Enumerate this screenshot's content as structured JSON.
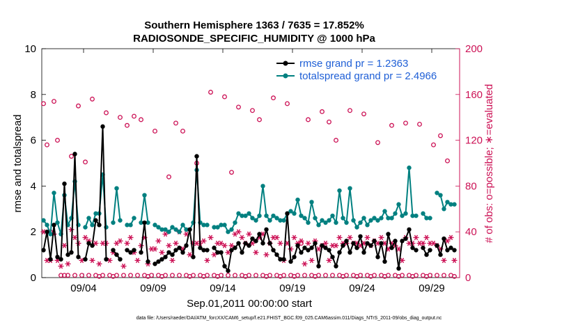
{
  "chart_data": {
    "type": "line",
    "title": "Southern Hemisphere 1363 / 7635 = 17.852%",
    "subtitle": "RADIOSONDE_SPECIFIC_HUMIDITY @ 1000 hPa",
    "xlabel": "Sep.01,2011 00:00:00 start",
    "ylabel": "rmse and totalspread",
    "y2label": "# of obs: o=possible; ∗=evaluated",
    "footer": "data file: /Users/raeder/DAI/ATM_forcXX/CAM6_setup/f.e21.FHIST_BGC.f09_025.CAM6assim.011/Diags_NTrS_2011-09/obs_diag_output.nc",
    "xlim": [
      1,
      31
    ],
    "ylim": [
      0,
      10
    ],
    "y2lim": [
      0,
      200
    ],
    "xticks": [
      4,
      9,
      14,
      19,
      24,
      29
    ],
    "xtick_labels": [
      "09/04",
      "09/09",
      "09/14",
      "09/19",
      "09/24",
      "09/29"
    ],
    "yticks": [
      0,
      2,
      4,
      6,
      8,
      10
    ],
    "y2ticks": [
      0,
      40,
      80,
      120,
      160,
      200
    ],
    "colors": {
      "rmse": "#000000",
      "spread": "#008080",
      "obs": "#cc1155",
      "legend_text": "#1f5fd6",
      "y2axis": "#cc1155"
    },
    "legend": {
      "placement": "top-right",
      "rmse": "rmse grand pr = 1.2363",
      "spread": "totalspread grand pr = 2.4966"
    },
    "time_step_days": 0.25,
    "time_start_day": 1.125,
    "series": [
      {
        "name": "rmse",
        "axis": "left",
        "values": [
          1.2,
          2.0,
          0.8,
          2.3,
          0.9,
          0.8,
          4.1,
          1.0,
          1.1,
          5.4,
          0.9,
          null,
          0.8,
          1.5,
          1.4,
          2.5,
          2.3,
          6.6,
          0.8,
          null,
          1.2,
          1.0,
          0.8,
          null,
          1.2,
          1.1,
          1.2,
          null,
          1.1,
          2.4,
          0.7,
          null,
          0.6,
          0.7,
          0.8,
          0.9,
          1.1,
          1.0,
          1.2,
          1.3,
          1.1,
          1.4,
          2.1,
          0.9,
          5.3,
          1.3,
          1.2,
          1.2,
          null,
          1.3,
          1.1,
          1.1,
          0.5,
          0.3,
          1.2,
          1.3,
          1.5,
          1.1,
          1.5,
          1.4,
          1.7,
          1.6,
          1.9,
          1.5,
          2.1,
          1.5,
          1.2,
          1.0,
          0.8,
          0.8,
          2.8,
          0.7,
          0.9,
          1.4,
          1.1,
          1.3,
          1.2,
          1.3,
          1.5,
          0.5,
          1.4,
          1.3,
          1.2,
          0.9,
          0.5,
          1.1,
          1.4,
          1.6,
          1.1,
          1.5,
          1.3,
          1.8,
          1.1,
          1.5,
          1.4,
          1.6,
          0.9,
          1.5,
          0.7,
          1.9,
          1.3,
          1.6,
          0.4,
          1.6,
          1.7,
          2.1,
          1.3,
          1.2,
          null,
          1.3,
          1.0,
          1.2,
          null,
          1.4,
          1.0,
          1.7,
          1.2,
          1.3,
          1.2
        ]
      },
      {
        "name": "totalspread",
        "axis": "left",
        "values": [
          2.5,
          2.3,
          1.9,
          3.7,
          2.4,
          1.9,
          3.6,
          2.3,
          2.6,
          4.2,
          2.3,
          null,
          2.2,
          2.6,
          2.3,
          2.8,
          2.8,
          4.5,
          2.2,
          null,
          2.4,
          3.9,
          2.5,
          null,
          2.3,
          2.3,
          2.6,
          null,
          2.4,
          3.6,
          2.4,
          null,
          2.3,
          2.2,
          2.1,
          2.1,
          2.0,
          2.2,
          2.1,
          2.0,
          2.3,
          2.1,
          2.1,
          2.4,
          4.7,
          2.4,
          2.3,
          2.3,
          null,
          2.2,
          2.2,
          2.3,
          2.3,
          2.0,
          2.1,
          2.4,
          2.8,
          2.7,
          2.7,
          2.8,
          2.6,
          2.5,
          2.7,
          4.0,
          2.7,
          2.5,
          2.7,
          2.6,
          2.5,
          2.5,
          2.8,
          2.9,
          2.8,
          3.4,
          2.7,
          2.6,
          2.4,
          3.3,
          2.6,
          2.3,
          2.5,
          2.4,
          2.5,
          2.7,
          2.4,
          3.8,
          2.6,
          2.4,
          3.9,
          2.5,
          2.2,
          2.4,
          2.6,
          2.3,
          2.5,
          2.6,
          2.5,
          2.6,
          2.9,
          2.6,
          2.6,
          2.8,
          3.2,
          2.7,
          2.8,
          4.8,
          2.7,
          2.7,
          null,
          2.8,
          2.6,
          2.6,
          null,
          3.7,
          3.6,
          3.0,
          3.3,
          3.2,
          3.2
        ]
      },
      {
        "name": "possible",
        "axis": "right",
        "marker": "o",
        "values": [
          152,
          116,
          40,
          154,
          120,
          2,
          2,
          2,
          106,
          2,
          150,
          2,
          101,
          2,
          156,
          2,
          1,
          2,
          144,
          2,
          1,
          2,
          140,
          2,
          133,
          2,
          141,
          2,
          138,
          2,
          1,
          2,
          128,
          2,
          1,
          2,
          88,
          2,
          135,
          2,
          128,
          2,
          1,
          2,
          100,
          2,
          1,
          2,
          162,
          2,
          1,
          2,
          158,
          2,
          92,
          2,
          149,
          2,
          1,
          2,
          146,
          2,
          138,
          2,
          1,
          2,
          157,
          2,
          1,
          2,
          152,
          2,
          1,
          2,
          30,
          2,
          138,
          2,
          1,
          2,
          145,
          2,
          136,
          2,
          120,
          2,
          1,
          2,
          146,
          2,
          1,
          2,
          143,
          2,
          1,
          2,
          118,
          2,
          1,
          2,
          133,
          2,
          1,
          2,
          135,
          2,
          1,
          2,
          134,
          2,
          1,
          2,
          116,
          2,
          124,
          2,
          102,
          2,
          1
        ]
      },
      {
        "name": "evaluated",
        "axis": "right",
        "marker": "*",
        "values": [
          40,
          15,
          15,
          38,
          15,
          10,
          28,
          12,
          42,
          35,
          30,
          15,
          35,
          32,
          15,
          30,
          12,
          30,
          30,
          15,
          22,
          30,
          32,
          10,
          30,
          35,
          22,
          15,
          28,
          35,
          12,
          25,
          25,
          32,
          22,
          38,
          28,
          15,
          30,
          40,
          25,
          38,
          20,
          30,
          30,
          30,
          32,
          15,
          35,
          20,
          30,
          30,
          28,
          22,
          28,
          38,
          40,
          35,
          30,
          38,
          30,
          22,
          35,
          38,
          20,
          30,
          35,
          35,
          30,
          15,
          30,
          25,
          35,
          30,
          32,
          12,
          30,
          15,
          32,
          25,
          28,
          30,
          15,
          28,
          28,
          35,
          30,
          30,
          35,
          30,
          30,
          28,
          30,
          35,
          28,
          32,
          30,
          35,
          30,
          25,
          30,
          28,
          25,
          15,
          35,
          30,
          30,
          35,
          30,
          30,
          35,
          30,
          30,
          28,
          25,
          15,
          32,
          35,
          15
        ]
      }
    ]
  }
}
